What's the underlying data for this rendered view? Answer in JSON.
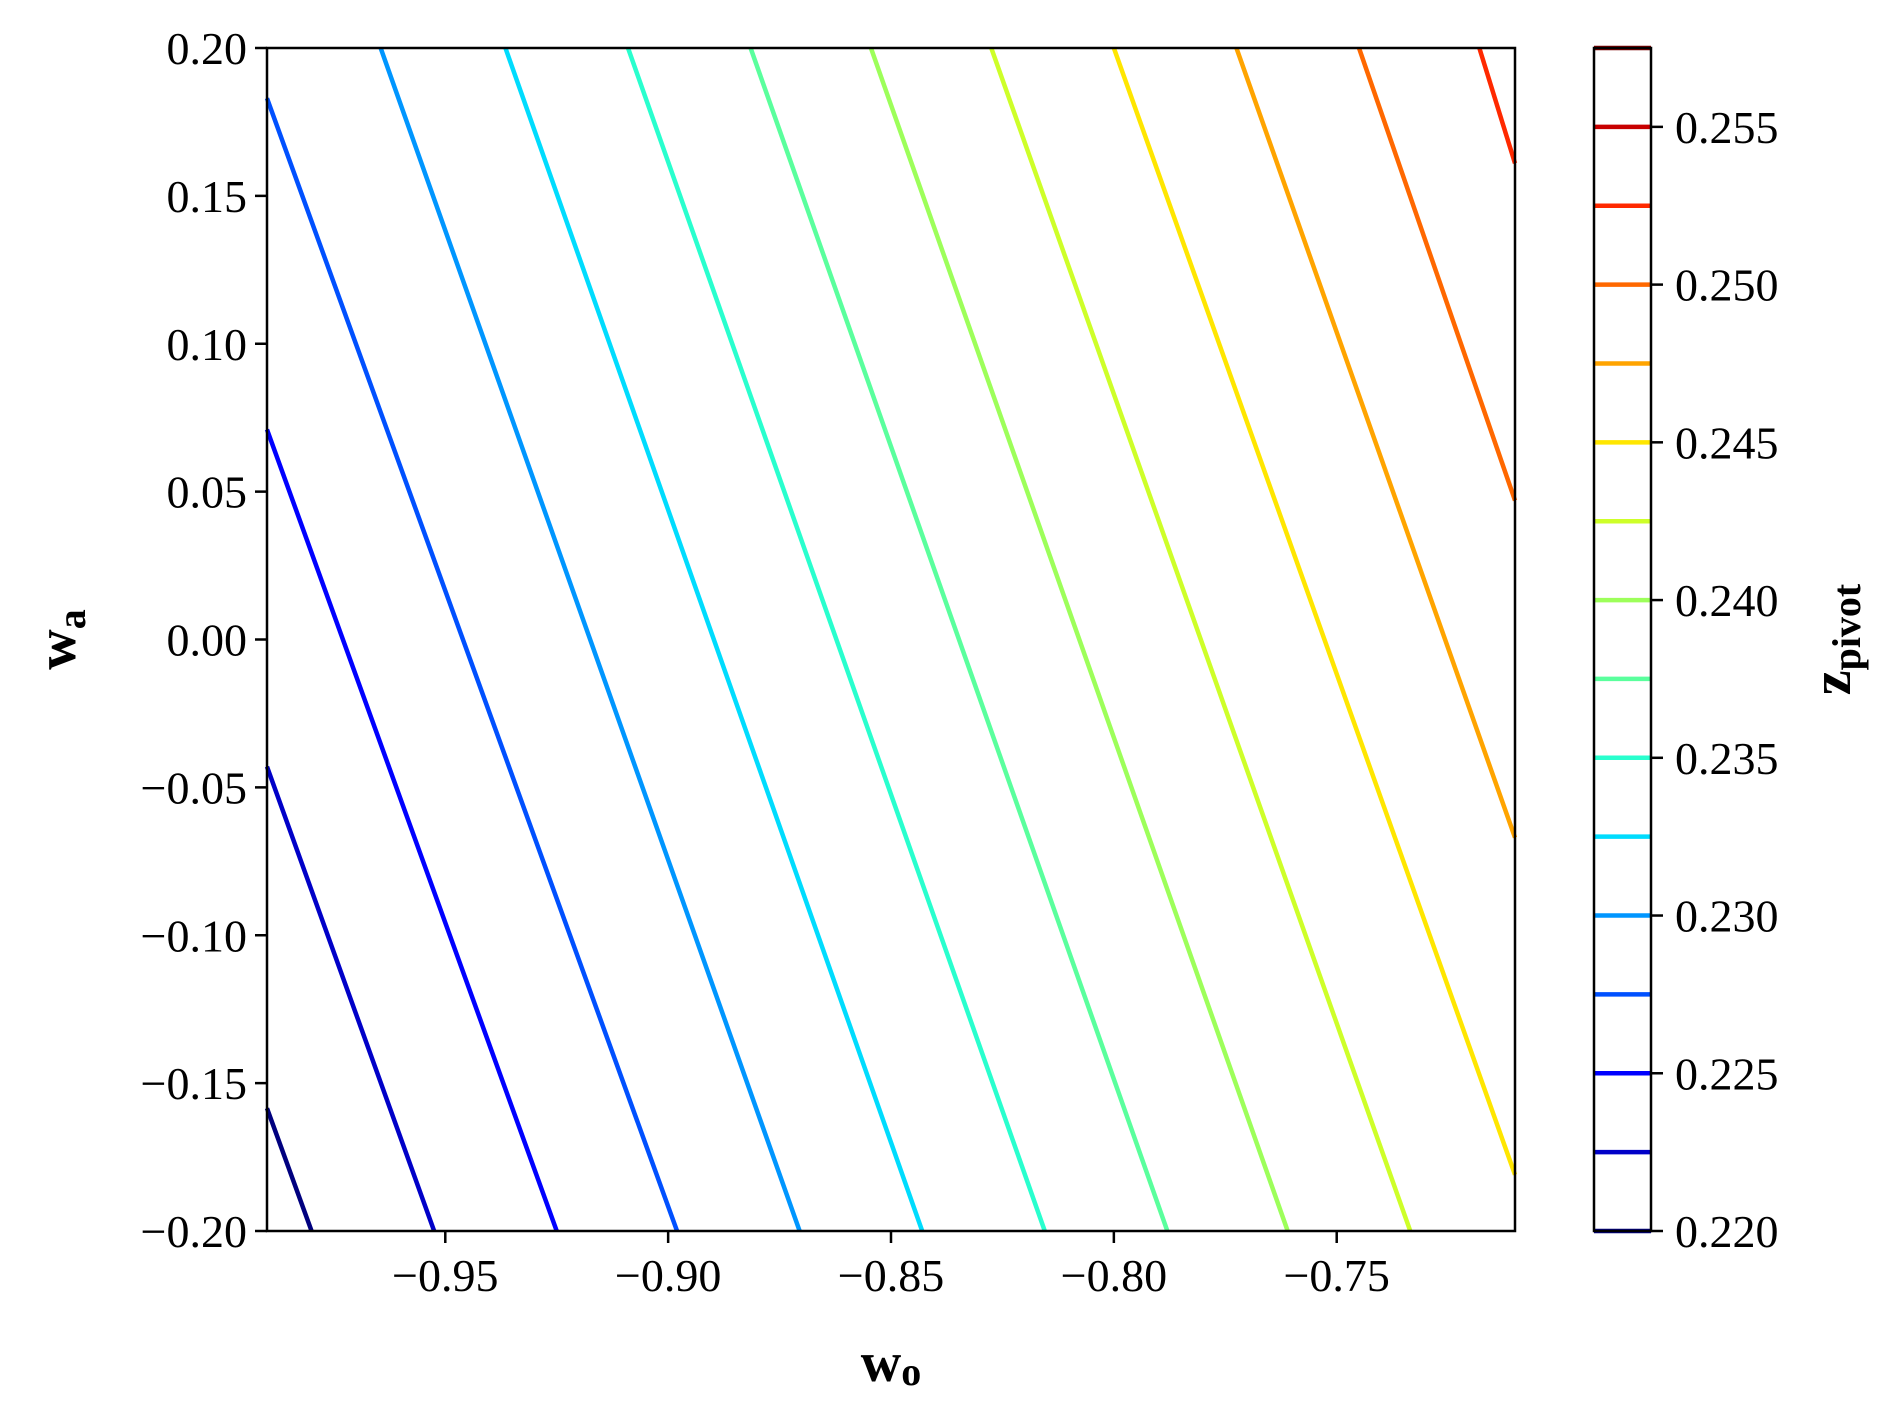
{
  "chart_data": {
    "type": "contour",
    "xlabel": {
      "main": "w",
      "sub": "o"
    },
    "ylabel": {
      "main": "w",
      "sub": "a"
    },
    "colorbar_label": {
      "main": "z",
      "sub": "pivot"
    },
    "xlim": [
      -0.99,
      -0.71
    ],
    "ylim": [
      -0.2,
      0.2
    ],
    "x_ticks": [
      -0.95,
      -0.9,
      -0.85,
      -0.8,
      -0.75
    ],
    "x_tick_labels": [
      "−0.95",
      "−0.90",
      "−0.85",
      "−0.80",
      "−0.75"
    ],
    "y_ticks": [
      0.2,
      0.15,
      0.1,
      0.05,
      0.0,
      -0.05,
      -0.1,
      -0.15,
      -0.2
    ],
    "y_tick_labels": [
      "0.20",
      "0.15",
      "0.10",
      "0.05",
      "0.00",
      "−0.05",
      "−0.10",
      "−0.15",
      "−0.20"
    ],
    "colorbar_range": [
      0.22,
      0.2575
    ],
    "colorbar_ticks": [
      0.255,
      0.25,
      0.245,
      0.24,
      0.235,
      0.23,
      0.225,
      0.22
    ],
    "colorbar_tick_labels": [
      "0.255",
      "0.250",
      "0.245",
      "0.240",
      "0.235",
      "0.230",
      "0.225",
      "0.220"
    ],
    "levels": [
      {
        "value": 0.22,
        "color": "#00007f",
        "p1": [
          -0.99,
          -0.1585
        ],
        "p2": [
          -0.98,
          -0.2
        ]
      },
      {
        "value": 0.2225,
        "color": "#0000c8",
        "p1": [
          -0.99,
          -0.043
        ],
        "p2": [
          -0.9525,
          -0.2
        ]
      },
      {
        "value": 0.225,
        "color": "#0000ff",
        "p1": [
          -0.99,
          0.071
        ],
        "p2": [
          -0.925,
          -0.2
        ]
      },
      {
        "value": 0.2275,
        "color": "#0050ff",
        "p1": [
          -0.99,
          0.183
        ],
        "p2": [
          -0.898,
          -0.2
        ]
      },
      {
        "value": 0.23,
        "color": "#0096ff",
        "p1": [
          -0.9645,
          0.2
        ],
        "p2": [
          -0.8705,
          -0.2
        ]
      },
      {
        "value": 0.2325,
        "color": "#00dcfe",
        "p1": [
          -0.9365,
          0.2
        ],
        "p2": [
          -0.843,
          -0.2
        ]
      },
      {
        "value": 0.235,
        "color": "#29ffce",
        "p1": [
          -0.909,
          0.2
        ],
        "p2": [
          -0.8155,
          -0.2
        ]
      },
      {
        "value": 0.2375,
        "color": "#5aff9d",
        "p1": [
          -0.8815,
          0.2
        ],
        "p2": [
          -0.788,
          -0.2
        ]
      },
      {
        "value": 0.24,
        "color": "#9dff5a",
        "p1": [
          -0.8545,
          0.2
        ],
        "p2": [
          -0.761,
          -0.2
        ]
      },
      {
        "value": 0.2425,
        "color": "#ceff29",
        "p1": [
          -0.8275,
          0.2
        ],
        "p2": [
          -0.7335,
          -0.2
        ]
      },
      {
        "value": 0.245,
        "color": "#ffe600",
        "p1": [
          -0.8,
          0.2
        ],
        "p2": [
          -0.71,
          -0.181
        ]
      },
      {
        "value": 0.2475,
        "color": "#ffa400",
        "p1": [
          -0.7725,
          0.2
        ],
        "p2": [
          -0.71,
          -0.067
        ]
      },
      {
        "value": 0.25,
        "color": "#ff6800",
        "p1": [
          -0.745,
          0.2
        ],
        "p2": [
          -0.71,
          0.047
        ]
      },
      {
        "value": 0.2525,
        "color": "#ff2900",
        "p1": [
          -0.718,
          0.2
        ],
        "p2": [
          -0.71,
          0.161
        ]
      },
      {
        "value": 0.255,
        "color": "#c80000",
        "p1": [
          -0.71,
          0.2
        ],
        "p2": [
          -0.71,
          0.2
        ]
      },
      {
        "value": 0.2575,
        "color": "#7f0000",
        "p1": [
          -0.71,
          0.2
        ],
        "p2": [
          -0.71,
          0.2
        ]
      }
    ]
  }
}
